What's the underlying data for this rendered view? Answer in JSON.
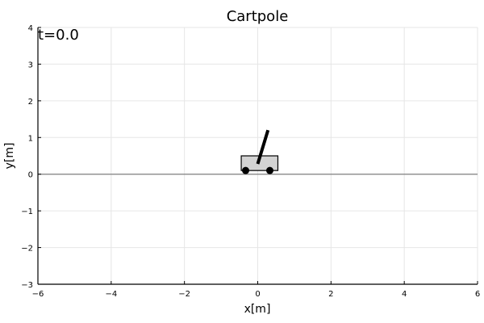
{
  "chart_data": {
    "type": "scatter",
    "title": "Cartpole",
    "xlabel": "x[m]",
    "ylabel": "y[m]",
    "xlim": [
      -6,
      6
    ],
    "ylim": [
      -3,
      4
    ],
    "xticks": [
      -6,
      -4,
      -2,
      0,
      2,
      4,
      6
    ],
    "yticks": [
      -3,
      -2,
      -1,
      0,
      1,
      2,
      3,
      4
    ],
    "xtick_labels": [
      "−6",
      "−4",
      "−2",
      "0",
      "2",
      "4",
      "6"
    ],
    "ytick_labels": [
      "−3",
      "−2",
      "−1",
      "0",
      "1",
      "2",
      "3",
      "4"
    ],
    "grid": true,
    "annotation": "t=0.0",
    "ground_line": {
      "y": 0,
      "x_range": [
        -6,
        6
      ]
    },
    "cart": {
      "x_center": 0.05,
      "width": 1.0,
      "y_bottom": 0.1,
      "y_top": 0.5
    },
    "wheels": [
      {
        "x": -0.33,
        "y": 0.1
      },
      {
        "x": 0.33,
        "y": 0.1
      }
    ],
    "pole": {
      "x0": 0.0,
      "y0": 0.28,
      "x1": 0.28,
      "y1": 1.2
    },
    "colors": {
      "cart_fill": "#d3d3d3",
      "cart_stroke": "#000000",
      "ground_line": "#808080",
      "pole": "#000000",
      "wheel": "#000000",
      "grid": "#e6e6e6",
      "axis": "#000000"
    }
  }
}
